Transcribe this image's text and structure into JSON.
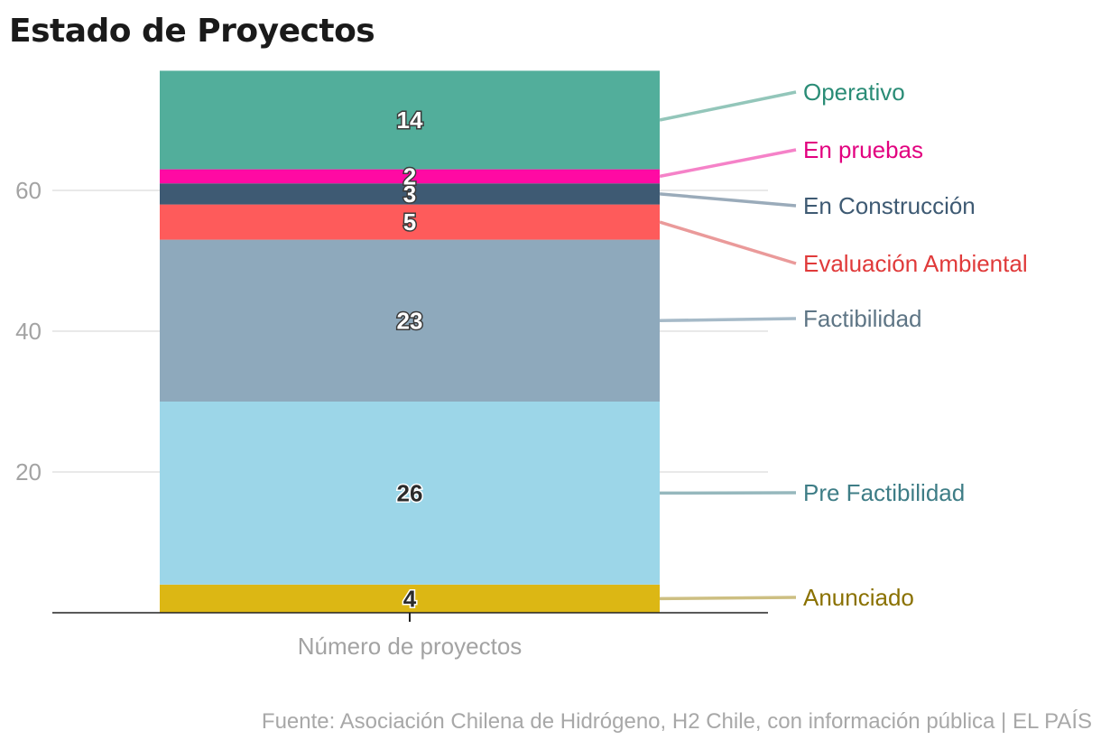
{
  "chart_data": {
    "type": "bar",
    "stacked": true,
    "title": "Estado de Proyectos",
    "xlabel": "Número de proyectos",
    "ylabel": "",
    "categories": [
      "Número de proyectos"
    ],
    "ylim": [
      0,
      77
    ],
    "yticks": [
      20,
      40,
      60
    ],
    "grid": true,
    "series": [
      {
        "name": "Anunciado",
        "values": [
          4
        ],
        "color": "#dcb714",
        "label_color": "#8a7100",
        "leader_color": "#cdbf82",
        "value_text_color": "#2b2b2b"
      },
      {
        "name": "Pre Factibilidad",
        "values": [
          26
        ],
        "color": "#9cd6e8",
        "label_color": "#3e7d86",
        "leader_color": "#96b8bd",
        "value_text_color": "#2b2b2b"
      },
      {
        "name": "Factibilidad",
        "values": [
          23
        ],
        "color": "#8ea9bc",
        "label_color": "#5e7585",
        "leader_color": "#a6bac8",
        "value_text_color": "#ffffff"
      },
      {
        "name": "Evaluación Ambiental",
        "values": [
          5
        ],
        "color": "#fe5b5b",
        "label_color": "#e03a3a",
        "leader_color": "#ea9a9a",
        "value_text_color": "#ffffff"
      },
      {
        "name": "En Construcción",
        "values": [
          3
        ],
        "color": "#3e5a73",
        "label_color": "#3e5a73",
        "leader_color": "#9aabba",
        "value_text_color": "#ffffff"
      },
      {
        "name": "En pruebas",
        "values": [
          2
        ],
        "color": "#ff0aa3",
        "label_color": "#e2007f",
        "leader_color": "#f582c8",
        "value_text_color": "#ffffff"
      },
      {
        "name": "Operativo",
        "values": [
          14
        ],
        "color": "#52ae9b",
        "label_color": "#2a8c76",
        "leader_color": "#93c6ba",
        "value_text_color": "#ffffff"
      }
    ],
    "legend": "right-side leader labels"
  },
  "source": "Fuente: Asociación Chilena de Hidrógeno, H2 Chile, con información pública | EL PAÍS"
}
